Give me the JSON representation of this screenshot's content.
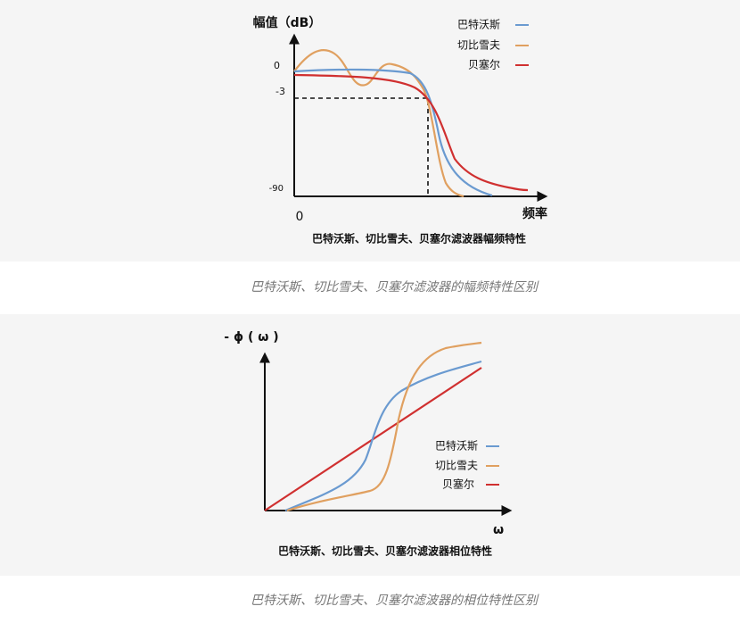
{
  "figures": [
    {
      "y_axis_label": "幅值（dB）",
      "x_axis_label": "频率",
      "y_tick_labels": [
        "0",
        "-3",
        "-90"
      ],
      "x_tick_label": "0",
      "legend": [
        "巴特沃斯",
        "切比雪夫",
        "贝塞尔"
      ],
      "inner_caption": "巴特沃斯、切比雪夫、贝塞尔滤波器幅频特性",
      "caption": "巴特沃斯、切比雪夫、贝塞尔滤波器的幅频特性区别"
    },
    {
      "y_axis_label": "- ϕ ( ω )",
      "x_axis_label": "ω",
      "legend": [
        "巴特沃斯",
        "切比雪夫",
        "贝塞尔"
      ],
      "inner_caption": "巴特沃斯、切比雪夫、贝塞尔滤波器相位特性",
      "caption": "巴特沃斯、切比雪夫、贝塞尔滤波器的相位特性区别"
    }
  ]
}
